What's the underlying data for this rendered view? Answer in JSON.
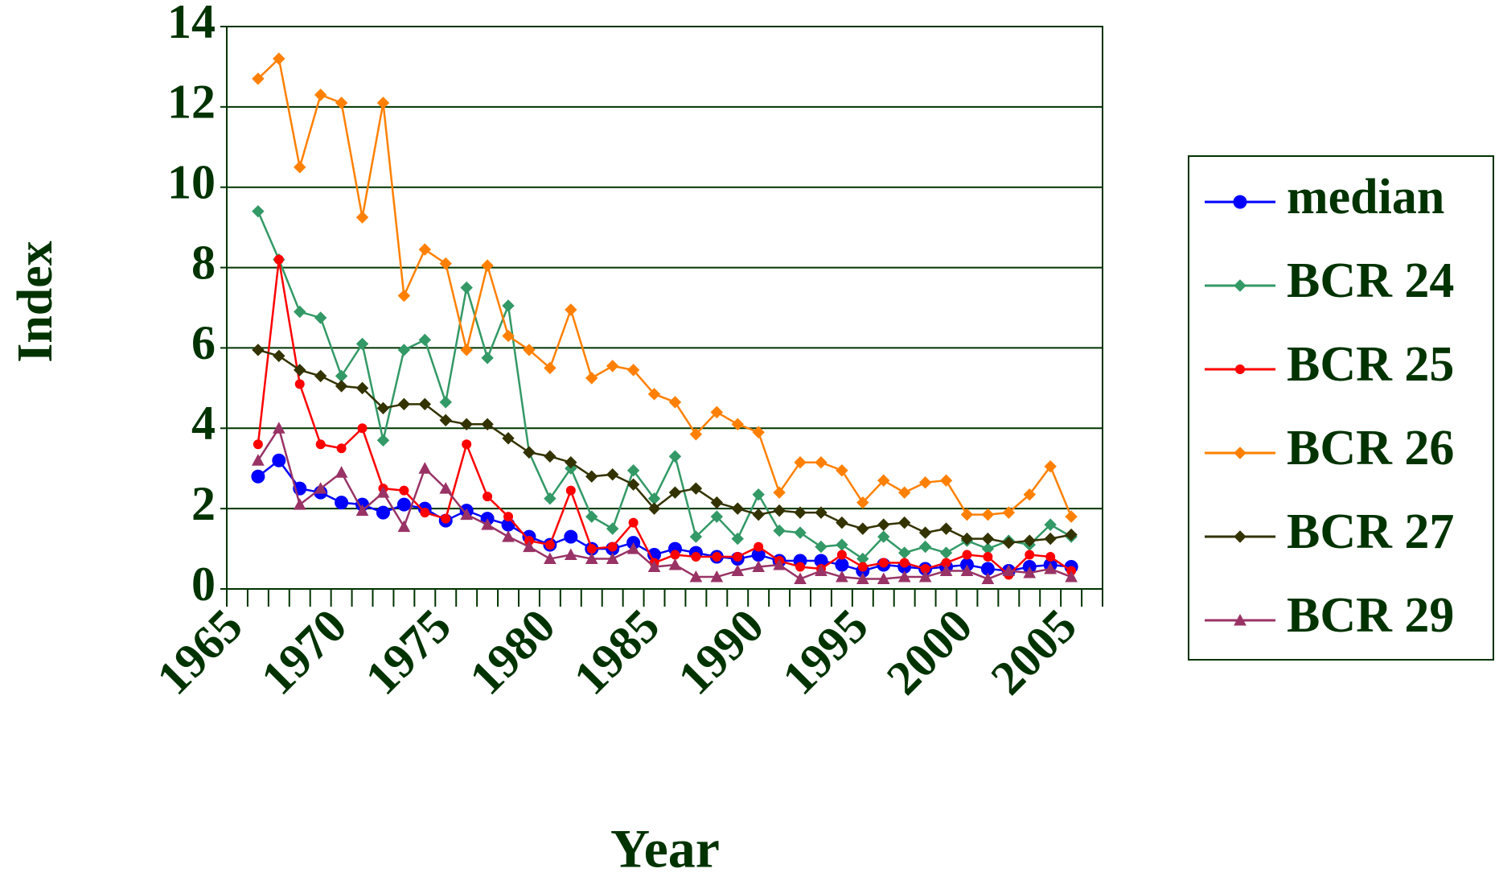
{
  "chart_data": {
    "type": "line",
    "x_label": "Year",
    "y_label": "Index",
    "categories": [
      "1965",
      null,
      null,
      null,
      null,
      "1970",
      null,
      null,
      null,
      null,
      "1975",
      null,
      null,
      null,
      null,
      "1980",
      null,
      null,
      null,
      null,
      "1985",
      null,
      null,
      null,
      null,
      "1990",
      null,
      null,
      null,
      null,
      "1995",
      null,
      null,
      null,
      null,
      "2000",
      null,
      null,
      null,
      null,
      "2005",
      null
    ],
    "series": [
      {
        "name": "median",
        "color": "#0000ff",
        "marker": "circle",
        "values": [
          null,
          2.8,
          3.2,
          2.5,
          2.4,
          2.15,
          2.1,
          1.9,
          2.1,
          2.0,
          1.7,
          1.95,
          1.75,
          1.6,
          1.3,
          1.1,
          1.3,
          1.0,
          1.0,
          1.15,
          0.85,
          1.0,
          0.9,
          0.8,
          0.75,
          0.85,
          0.7,
          0.7,
          0.7,
          0.6,
          0.45,
          0.6,
          0.55,
          0.5,
          0.55,
          0.6,
          0.5,
          0.45,
          0.55,
          0.6,
          0.55,
          null
        ]
      },
      {
        "name": "BCR 24",
        "color": "#339966",
        "marker": "diamond",
        "values": [
          null,
          9.4,
          8.2,
          6.9,
          6.75,
          5.3,
          6.1,
          3.7,
          5.95,
          6.2,
          4.65,
          7.5,
          5.75,
          7.05,
          3.4,
          2.25,
          3.0,
          1.8,
          1.5,
          2.95,
          2.25,
          3.3,
          1.3,
          1.8,
          1.25,
          2.35,
          1.45,
          1.4,
          1.05,
          1.1,
          0.75,
          1.3,
          0.9,
          1.05,
          0.9,
          1.2,
          1.0,
          1.2,
          1.1,
          1.6,
          1.3,
          null
        ]
      },
      {
        "name": "BCR 25",
        "color": "#ff0000",
        "marker": "circle",
        "values": [
          null,
          3.6,
          8.2,
          5.1,
          3.6,
          3.5,
          4.0,
          2.5,
          2.45,
          1.9,
          1.75,
          3.6,
          2.3,
          1.8,
          1.2,
          1.1,
          2.45,
          1.0,
          1.05,
          1.65,
          0.65,
          0.85,
          0.8,
          0.8,
          0.8,
          1.05,
          0.7,
          0.55,
          0.5,
          0.85,
          0.55,
          0.65,
          0.65,
          0.5,
          0.65,
          0.85,
          0.8,
          0.35,
          0.85,
          0.8,
          0.45,
          null
        ]
      },
      {
        "name": "BCR 26",
        "color": "#ff8000",
        "marker": "diamond",
        "values": [
          null,
          12.7,
          13.2,
          10.5,
          12.3,
          12.1,
          9.25,
          12.1,
          7.3,
          8.45,
          8.1,
          5.95,
          8.05,
          6.3,
          5.95,
          5.5,
          6.95,
          5.25,
          5.55,
          5.45,
          4.85,
          4.65,
          3.85,
          4.4,
          4.1,
          3.9,
          2.4,
          3.15,
          3.15,
          2.95,
          2.15,
          2.7,
          2.4,
          2.65,
          2.7,
          1.85,
          1.85,
          1.9,
          2.35,
          3.05,
          1.8,
          null
        ]
      },
      {
        "name": "BCR 27",
        "color": "#333300",
        "marker": "diamond",
        "values": [
          null,
          5.95,
          5.8,
          5.45,
          5.3,
          5.05,
          5.0,
          4.5,
          4.6,
          4.6,
          4.2,
          4.1,
          4.1,
          3.75,
          3.4,
          3.3,
          3.15,
          2.8,
          2.85,
          2.6,
          2.0,
          2.4,
          2.5,
          2.15,
          2.0,
          1.85,
          1.95,
          1.9,
          1.9,
          1.65,
          1.5,
          1.6,
          1.65,
          1.4,
          1.5,
          1.25,
          1.25,
          1.15,
          1.2,
          1.25,
          1.35,
          null
        ]
      },
      {
        "name": "BCR 29",
        "color": "#993366",
        "marker": "triangle",
        "values": [
          null,
          3.2,
          4.0,
          2.1,
          2.5,
          2.9,
          1.95,
          2.4,
          1.55,
          3.0,
          2.5,
          1.85,
          1.6,
          1.3,
          1.05,
          0.75,
          0.85,
          0.75,
          0.75,
          1.0,
          0.55,
          0.6,
          0.3,
          0.3,
          0.45,
          0.55,
          0.6,
          0.25,
          0.45,
          0.3,
          0.25,
          0.25,
          0.3,
          0.3,
          0.45,
          0.45,
          0.25,
          0.45,
          0.4,
          0.5,
          0.3,
          null
        ]
      }
    ],
    "ylim": [
      0,
      14
    ],
    "yticks": [
      0,
      2,
      4,
      6,
      8,
      10,
      12,
      14
    ],
    "grid": true,
    "legend": "right"
  }
}
